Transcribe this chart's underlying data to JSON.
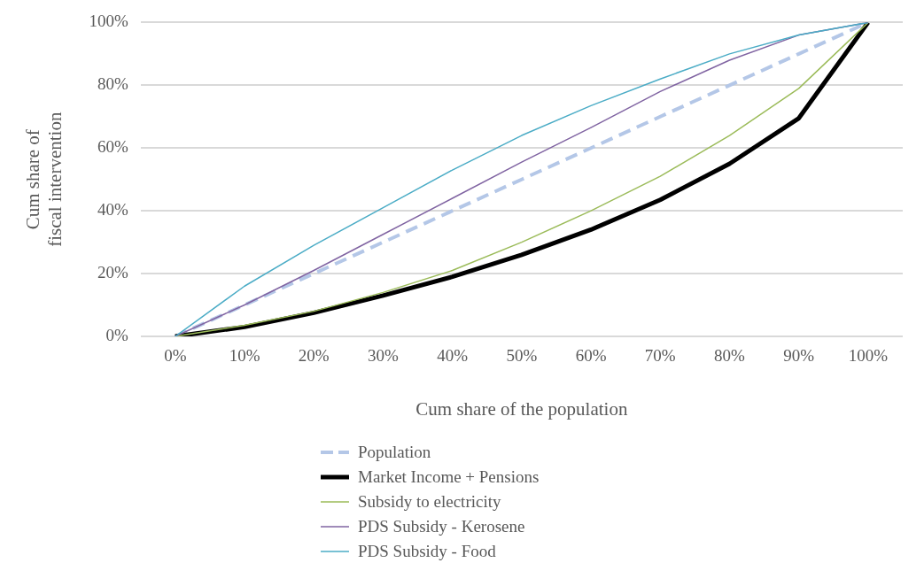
{
  "chart_data": {
    "type": "line",
    "xlabel": "Cum share of the population",
    "ylabel": "Cum share of fiscal intervention",
    "categories": [
      "0%",
      "10%",
      "20%",
      "30%",
      "40%",
      "50%",
      "60%",
      "70%",
      "80%",
      "90%",
      "100%"
    ],
    "ylim": [
      0,
      100
    ],
    "yticks": [
      {
        "value": 0,
        "label": "0%"
      },
      {
        "value": 20,
        "label": "20%"
      },
      {
        "value": 40,
        "label": "40%"
      },
      {
        "value": 60,
        "label": "60%"
      },
      {
        "value": 80,
        "label": "80%"
      },
      {
        "value": 100,
        "label": "100%"
      }
    ],
    "grid": "y",
    "legend": "bottom",
    "marker": "none",
    "series": [
      {
        "name": "Population",
        "color": "#b4c7e7",
        "line_style": "dashed",
        "values": [
          0,
          10,
          20,
          30,
          40,
          50,
          60,
          70,
          80,
          90,
          100
        ]
      },
      {
        "name": "Market Income + Pensions",
        "color": "#000000",
        "line_style": "solid",
        "values": [
          0,
          3,
          7.5,
          13,
          19,
          26,
          34,
          43.5,
          55,
          69.5,
          100
        ]
      },
      {
        "name": "Subsidy to electricity",
        "color": "#9bbb59",
        "line_style": "solid",
        "values": [
          0,
          3.5,
          8,
          14,
          21,
          30,
          40,
          51,
          64,
          79,
          100
        ]
      },
      {
        "name": "PDS Subsidy - Kerosene",
        "color": "#8064a2",
        "line_style": "solid",
        "values": [
          0,
          10,
          21,
          32.5,
          44,
          55.5,
          66.5,
          78,
          88,
          96,
          100
        ]
      },
      {
        "name": "PDS Subsidy - Food",
        "color": "#4bacc6",
        "line_style": "solid",
        "values": [
          0,
          16,
          29,
          41,
          53,
          64,
          73.5,
          82,
          90,
          96,
          100
        ]
      }
    ]
  }
}
